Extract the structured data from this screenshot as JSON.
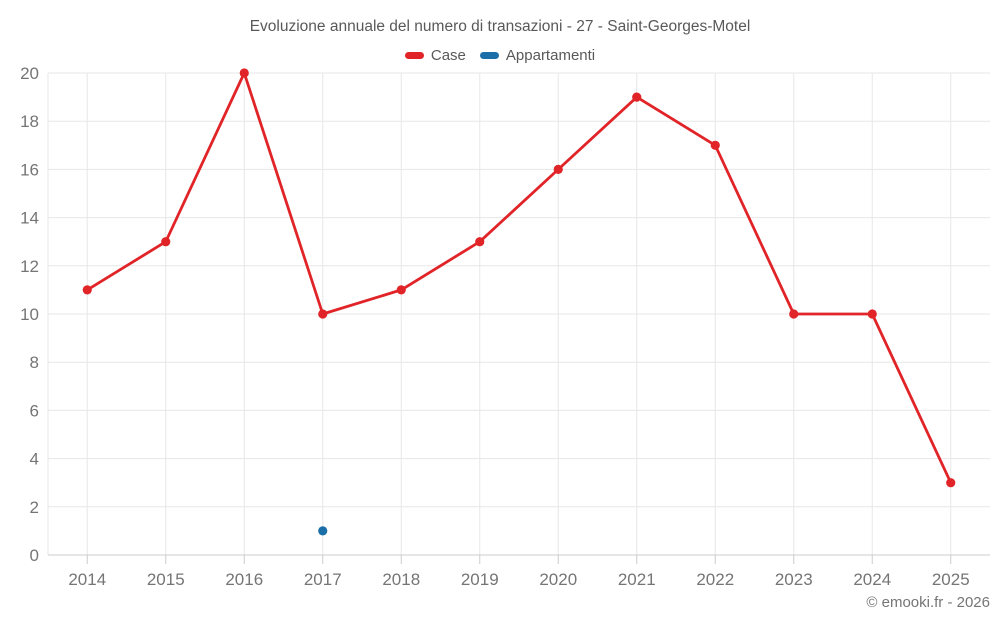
{
  "title": "Evoluzione annuale del numero di transazioni - 27 - Saint-Georges-Motel",
  "footer": "© emooki.fr - 2026",
  "colors": {
    "case_red": "#e02428",
    "appartamenti_blue": "#1b6fa8",
    "gridline": "#e7e7e7",
    "axis_line": "#cccccc",
    "tick_label": "#757575",
    "title_text": "#595959"
  },
  "chart_data": {
    "type": "line",
    "title": "Evoluzione annuale del numero di transazioni - 27 - Saint-Georges-Motel",
    "categories": [
      "2014",
      "2015",
      "2016",
      "2017",
      "2018",
      "2019",
      "2020",
      "2021",
      "2022",
      "2023",
      "2024",
      "2025"
    ],
    "series": [
      {
        "name": "Case",
        "color": "#e02428",
        "values": [
          11,
          13,
          20,
          10,
          11,
          13,
          16,
          19,
          17,
          10,
          10,
          3
        ]
      },
      {
        "name": "Appartamenti",
        "color": "#1b6fa8",
        "values": [
          null,
          null,
          null,
          1,
          null,
          null,
          null,
          null,
          null,
          null,
          null,
          null
        ]
      }
    ],
    "xlabel": "",
    "ylabel": "",
    "ylim": [
      0,
      20
    ],
    "y_ticks": [
      0,
      2,
      4,
      6,
      8,
      10,
      12,
      14,
      16,
      18,
      20
    ],
    "grid": true,
    "legend_position": "top",
    "marker": "circle"
  }
}
